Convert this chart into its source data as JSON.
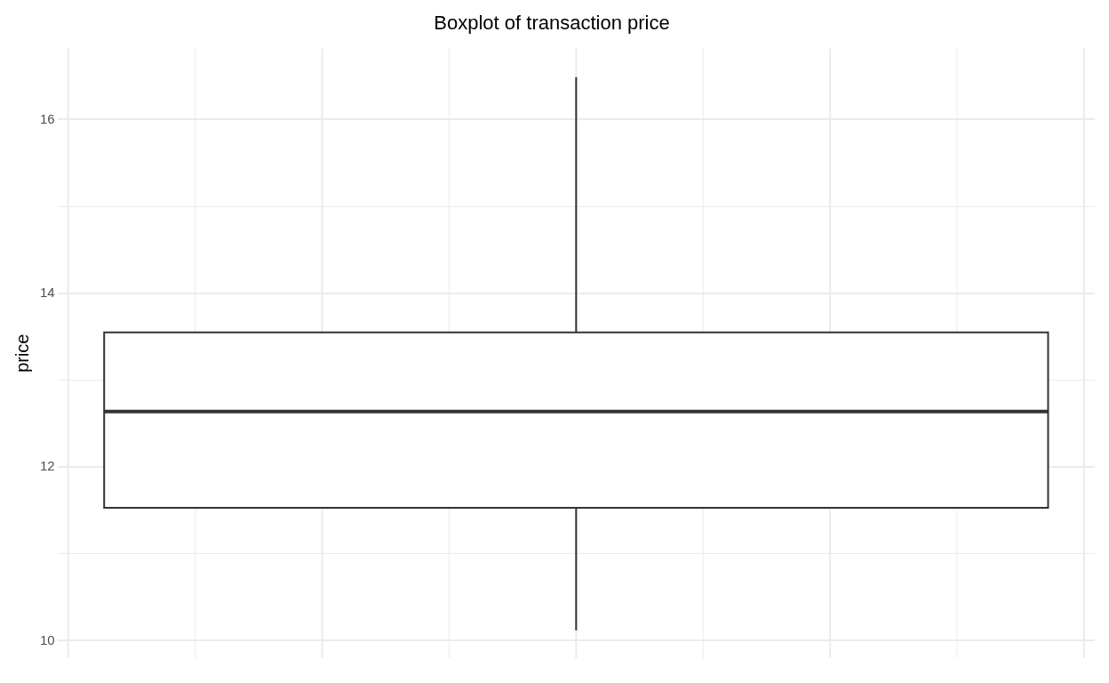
{
  "chart_data": {
    "type": "box",
    "title": "Boxplot of transaction price",
    "ylabel": "price",
    "categories": [
      null
    ],
    "boxes": [
      {
        "low": 10.12,
        "q1": 11.53,
        "median": 12.64,
        "q3": 13.55,
        "high": 16.49
      }
    ],
    "color": "#ffffff",
    "ylim": [
      9.8,
      16.82
    ],
    "yticks": [
      10,
      {
        "value": 11,
        "label": null
      },
      12,
      {
        "value": 13,
        "label": null
      },
      14,
      {
        "value": 15,
        "label": null
      },
      16
    ],
    "grid": true,
    "legend": false
  }
}
